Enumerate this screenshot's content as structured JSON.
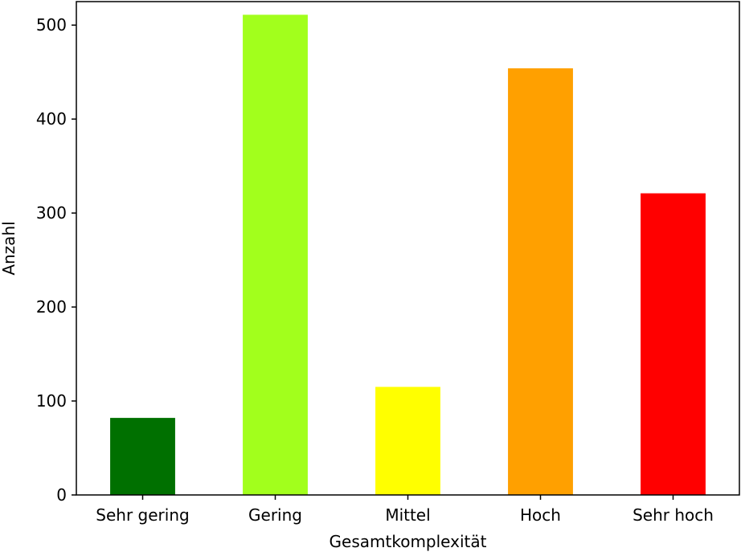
{
  "chart_data": {
    "type": "bar",
    "categories": [
      "Sehr gering",
      "Gering",
      "Mittel",
      "Hoch",
      "Sehr hoch"
    ],
    "values": [
      82,
      511,
      115,
      454,
      321
    ],
    "colors": [
      "#007000",
      "#a2ff1c",
      "#ffff00",
      "#ffa000",
      "#ff0000"
    ],
    "xlabel": "Gesamtkomplexität",
    "ylabel": "Anzahl",
    "ylim": [
      0,
      525
    ],
    "yticks": [
      0,
      100,
      200,
      300,
      400,
      500
    ],
    "grid": false,
    "legend": "none"
  }
}
